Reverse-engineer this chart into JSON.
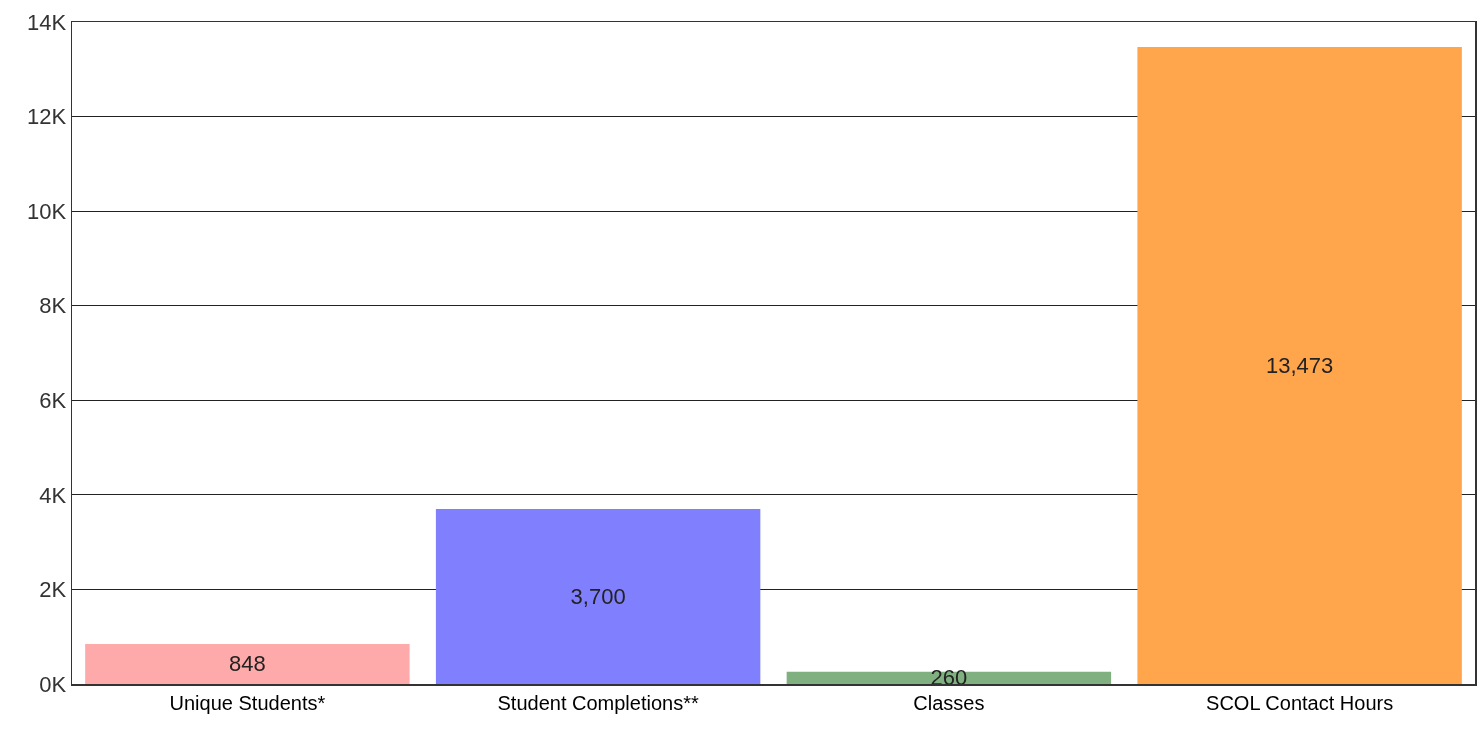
{
  "chart_data": {
    "type": "bar",
    "categories": [
      "Unique Students*",
      "Student Completions**",
      "Classes",
      "SCOL Contact Hours"
    ],
    "values": [
      848,
      3700,
      260,
      13473
    ],
    "colors": [
      "#ffaaaa",
      "#8080ff",
      "#80b080",
      "#ffa64d"
    ],
    "value_labels": [
      "848",
      "3,700",
      "260",
      "13,473"
    ],
    "ylim": [
      0,
      14000
    ],
    "yticks": [
      {
        "value": 0,
        "label": "0K"
      },
      {
        "value": 2000,
        "label": "2K"
      },
      {
        "value": 4000,
        "label": "4K"
      },
      {
        "value": 6000,
        "label": "6K"
      },
      {
        "value": 8000,
        "label": "8K"
      },
      {
        "value": 10000,
        "label": "10K"
      },
      {
        "value": 12000,
        "label": "12K"
      },
      {
        "value": 14000,
        "label": "14K"
      }
    ],
    "grid": "y"
  }
}
